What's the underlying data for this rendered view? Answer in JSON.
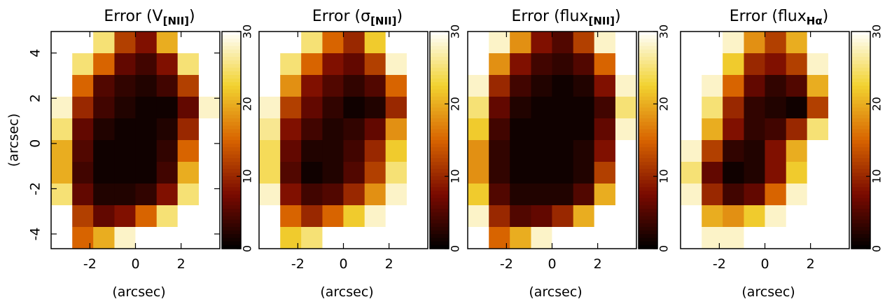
{
  "chart_data": [
    {
      "type": "heatmap",
      "title": [
        "Error (V",
        "[NII]",
        ")"
      ],
      "xlabel": "(arcsec)",
      "ylabel": "(arcsec)",
      "xlim": [
        -3.7,
        3.7
      ],
      "ylim": [
        -4.65,
        4.95
      ],
      "xticks": [
        -2,
        0,
        2
      ],
      "yticks": [
        -4,
        -2,
        0,
        2,
        4
      ],
      "clim": [
        0,
        30
      ],
      "cticks": [
        0,
        10,
        20,
        30
      ],
      "colormap": [
        "#000000",
        "#7a0a00",
        "#d86400",
        "#f2d230",
        "#ffffff"
      ],
      "x": [
        -3.24,
        -2.31,
        -1.39,
        -0.46,
        0.46,
        1.39,
        2.31,
        3.24
      ],
      "y": [
        4.47,
        3.51,
        2.55,
        1.59,
        0.63,
        -0.33,
        -1.29,
        -2.25,
        -3.21,
        -4.17
      ],
      "z": [
        [
          30,
          30,
          25,
          12,
          8,
          20,
          30,
          30
        ],
        [
          30,
          25,
          15,
          6,
          4,
          8,
          25,
          30
        ],
        [
          30,
          15,
          5,
          3,
          2,
          4,
          12,
          30
        ],
        [
          28,
          10,
          4,
          2,
          1,
          1,
          6,
          28
        ],
        [
          25,
          6,
          2,
          1,
          1,
          2,
          10,
          30
        ],
        [
          20,
          5,
          1,
          1,
          1,
          3,
          15,
          30
        ],
        [
          20,
          4,
          1,
          1,
          1,
          4,
          20,
          30
        ],
        [
          25,
          6,
          2,
          2,
          3,
          8,
          25,
          30
        ],
        [
          30,
          12,
          6,
          8,
          15,
          25,
          30,
          30
        ],
        [
          30,
          15,
          20,
          28,
          30,
          30,
          30,
          30
        ]
      ]
    },
    {
      "type": "heatmap",
      "title": [
        "Error (σ",
        "[NII]",
        ")"
      ],
      "xlabel": "(arcsec)",
      "xlim": [
        -3.7,
        3.7
      ],
      "ylim": [
        -4.65,
        4.95
      ],
      "xticks": [
        -2,
        0,
        2
      ],
      "clim": [
        0,
        30
      ],
      "cticks": [
        0,
        10,
        20,
        30
      ],
      "colormap": [
        "#000000",
        "#7a0a00",
        "#d86400",
        "#f2d230",
        "#ffffff"
      ],
      "x": [
        -3.24,
        -2.31,
        -1.39,
        -0.46,
        0.46,
        1.39,
        2.31,
        3.24
      ],
      "y": [
        4.47,
        3.51,
        2.55,
        1.59,
        0.63,
        -0.33,
        -1.29,
        -2.25,
        -3.21,
        -4.17
      ],
      "z": [
        [
          30,
          30,
          25,
          15,
          10,
          22,
          30,
          30
        ],
        [
          30,
          25,
          15,
          8,
          6,
          12,
          28,
          30
        ],
        [
          30,
          18,
          8,
          5,
          3,
          5,
          15,
          30
        ],
        [
          28,
          12,
          6,
          3,
          1,
          2,
          10,
          30
        ],
        [
          26,
          8,
          4,
          2,
          3,
          6,
          18,
          30
        ],
        [
          24,
          6,
          2,
          2,
          4,
          10,
          22,
          30
        ],
        [
          24,
          5,
          1,
          2,
          5,
          12,
          25,
          30
        ],
        [
          28,
          8,
          4,
          5,
          10,
          18,
          28,
          30
        ],
        [
          30,
          15,
          10,
          15,
          22,
          28,
          30,
          30
        ],
        [
          30,
          22,
          25,
          30,
          30,
          30,
          30,
          30
        ]
      ]
    },
    {
      "type": "heatmap",
      "title": [
        "Error (flux",
        "[NII]",
        ")"
      ],
      "xlabel": "(arcsec)",
      "xlim": [
        -3.7,
        3.7
      ],
      "ylim": [
        -4.65,
        4.95
      ],
      "xticks": [
        -2,
        0,
        2
      ],
      "clim": [
        0,
        30
      ],
      "cticks": [
        0,
        10,
        20,
        30
      ],
      "colormap": [
        "#000000",
        "#7a0a00",
        "#d86400",
        "#f2d230",
        "#ffffff"
      ],
      "x": [
        -3.24,
        -2.31,
        -1.39,
        -0.46,
        0.46,
        1.39,
        2.31,
        3.24
      ],
      "y": [
        4.47,
        3.51,
        2.55,
        1.59,
        0.63,
        -0.33,
        -1.29,
        -2.25,
        -3.21,
        -4.17
      ],
      "z": [
        [
          30,
          28,
          18,
          8,
          5,
          12,
          28,
          30
        ],
        [
          30,
          18,
          8,
          4,
          3,
          5,
          15,
          30
        ],
        [
          28,
          10,
          4,
          2,
          1,
          2,
          8,
          28
        ],
        [
          25,
          6,
          2,
          1,
          1,
          1,
          4,
          25
        ],
        [
          22,
          4,
          1,
          1,
          1,
          1,
          6,
          28
        ],
        [
          18,
          3,
          1,
          1,
          1,
          2,
          8,
          30
        ],
        [
          18,
          3,
          1,
          1,
          1,
          2,
          12,
          30
        ],
        [
          22,
          5,
          2,
          2,
          2,
          5,
          20,
          30
        ],
        [
          28,
          10,
          5,
          6,
          10,
          20,
          30,
          30
        ],
        [
          30,
          15,
          20,
          28,
          30,
          30,
          30,
          30
        ]
      ]
    },
    {
      "type": "heatmap",
      "title": [
        "Error (flux",
        "Hα",
        ")"
      ],
      "xlabel": "(arcsec)",
      "xlim": [
        -3.7,
        3.7
      ],
      "ylim": [
        -4.65,
        4.95
      ],
      "xticks": [
        -2,
        0,
        2
      ],
      "clim": [
        0,
        30
      ],
      "cticks": [
        0,
        10,
        20,
        30
      ],
      "colormap": [
        "#000000",
        "#7a0a00",
        "#d86400",
        "#f2d230",
        "#ffffff"
      ],
      "x": [
        -3.24,
        -2.31,
        -1.39,
        -0.46,
        0.46,
        1.39,
        2.31,
        3.24
      ],
      "y": [
        4.47,
        3.51,
        2.55,
        1.59,
        0.63,
        -0.33,
        -1.29,
        -2.25,
        -3.21,
        -4.17
      ],
      "z": [
        [
          30,
          30,
          28,
          18,
          12,
          20,
          30,
          30
        ],
        [
          30,
          30,
          22,
          10,
          8,
          12,
          28,
          30
        ],
        [
          30,
          28,
          15,
          6,
          3,
          5,
          20,
          30
        ],
        [
          30,
          25,
          10,
          3,
          2,
          1,
          12,
          30
        ],
        [
          30,
          20,
          8,
          3,
          4,
          10,
          25,
          30
        ],
        [
          28,
          12,
          3,
          2,
          8,
          20,
          30,
          30
        ],
        [
          25,
          6,
          1,
          2,
          8,
          22,
          30,
          30
        ],
        [
          28,
          10,
          4,
          6,
          15,
          28,
          30,
          30
        ],
        [
          30,
          20,
          18,
          22,
          28,
          30,
          30,
          30
        ],
        [
          30,
          28,
          28,
          30,
          30,
          30,
          30,
          30
        ]
      ]
    }
  ]
}
